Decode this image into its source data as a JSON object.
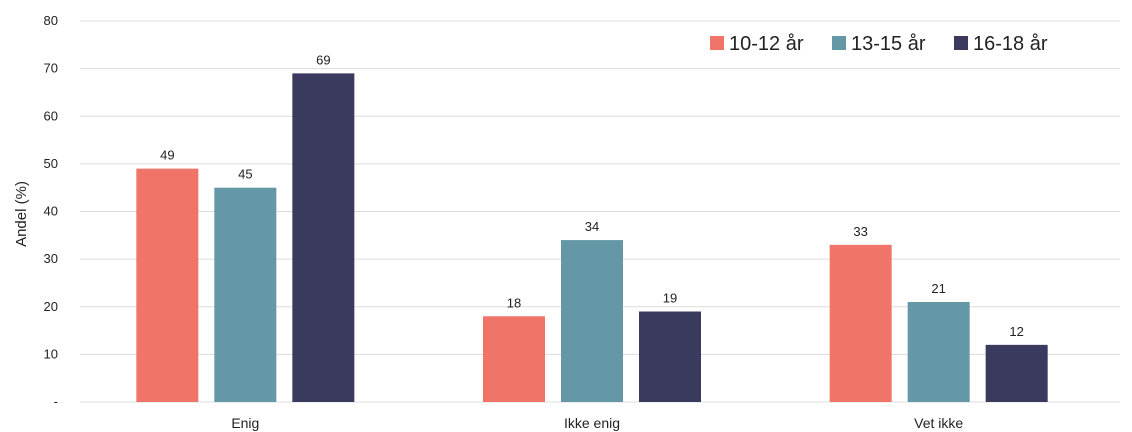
{
  "chart_data": {
    "type": "bar",
    "categories": [
      "Enig",
      "Ikke enig",
      "Vet ikke"
    ],
    "series": [
      {
        "name": "10-12 år",
        "values": [
          49,
          18,
          33
        ],
        "value_labels": [
          "49",
          "18",
          "33"
        ],
        "color": "#f07468"
      },
      {
        "name": "13-15 år",
        "values": [
          45,
          34,
          21
        ],
        "value_labels": [
          "45",
          "34",
          "21"
        ],
        "color": "#6598a6"
      },
      {
        "name": "16-18 år",
        "values": [
          69,
          19,
          12
        ],
        "value_labels": [
          "69",
          "19",
          "12"
        ],
        "color": "#393a5e"
      }
    ],
    "ylabel": "Andel (%)",
    "xlabel": "",
    "ylim": [
      0,
      80
    ],
    "yticks": [
      0,
      10,
      20,
      30,
      40,
      50,
      60,
      70,
      80
    ],
    "ytick_labels": [
      "-",
      "10",
      "20",
      "30",
      "40",
      "50",
      "60",
      "70",
      "80"
    ],
    "grid": true,
    "legend_position": "top-right"
  }
}
